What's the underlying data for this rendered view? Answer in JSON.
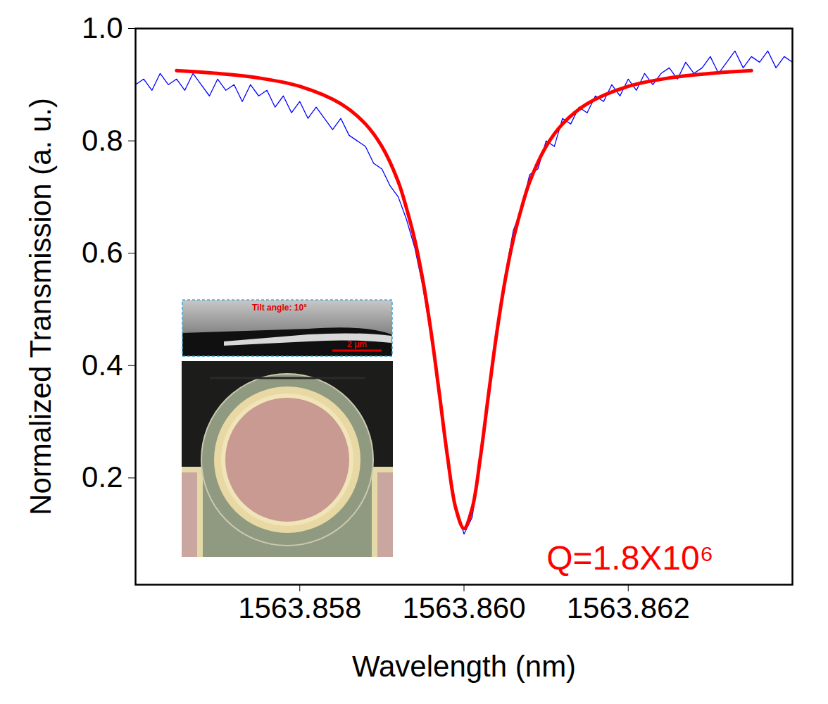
{
  "chart_data": {
    "type": "line",
    "x_label": "Wavelength (nm)",
    "y_label": "Normalized Transmission (a. u.)",
    "xlim": [
      1563.856,
      1563.864
    ],
    "xticks": [
      1563.858,
      {
        "value": 1563.86,
        "label": "1563.860"
      },
      1563.862
    ],
    "ylim": [
      0.01,
      1.0
    ],
    "yticks": [
      0.2,
      0.4,
      0.6,
      0.8,
      {
        "value": 1,
        "label": "1.0"
      }
    ],
    "grid": false,
    "series": [
      {
        "type": "line",
        "color": "#0000ff",
        "line_style": "solid",
        "x": [
          1563.856,
          1563.8561,
          1563.8562,
          1563.8563,
          1563.8564,
          1563.8565,
          1563.8566,
          1563.8567,
          1563.8568,
          1563.8569,
          1563.857,
          1563.8571,
          1563.8572,
          1563.8573,
          1563.8574,
          1563.8575,
          1563.8576,
          1563.8577,
          1563.8578,
          1563.8579,
          1563.858,
          1563.8581,
          1563.8582,
          1563.8583,
          1563.8584,
          1563.8585,
          1563.8586,
          1563.8587,
          1563.8588,
          1563.8589,
          1563.859,
          1563.8591,
          1563.8592,
          1563.8593,
          1563.8594,
          1563.8595,
          1563.8596,
          1563.8597,
          1563.8598,
          1563.8599,
          1563.86,
          1563.8601,
          1563.8602,
          1563.8603,
          1563.8604,
          1563.8605,
          1563.8606,
          1563.8607,
          1563.8608,
          1563.8609,
          1563.861,
          1563.8611,
          1563.8612,
          1563.8613,
          1563.8614,
          1563.8615,
          1563.8616,
          1563.8617,
          1563.8618,
          1563.8619,
          1563.862,
          1563.8621,
          1563.8622,
          1563.8623,
          1563.8624,
          1563.8625,
          1563.8626,
          1563.8627,
          1563.8628,
          1563.8629,
          1563.863,
          1563.8631,
          1563.8632,
          1563.8633,
          1563.8634,
          1563.8635,
          1563.8636,
          1563.8637,
          1563.8638,
          1563.8639,
          1563.864
        ],
        "values": [
          0.9,
          0.91,
          0.89,
          0.92,
          0.9,
          0.91,
          0.89,
          0.92,
          0.9,
          0.88,
          0.91,
          0.89,
          0.9,
          0.87,
          0.9,
          0.88,
          0.89,
          0.86,
          0.88,
          0.85,
          0.87,
          0.84,
          0.86,
          0.84,
          0.82,
          0.84,
          0.81,
          0.8,
          0.79,
          0.76,
          0.75,
          0.72,
          0.7,
          0.66,
          0.61,
          0.54,
          0.45,
          0.36,
          0.24,
          0.15,
          0.1,
          0.13,
          0.23,
          0.36,
          0.46,
          0.56,
          0.64,
          0.68,
          0.74,
          0.75,
          0.8,
          0.79,
          0.84,
          0.83,
          0.86,
          0.85,
          0.88,
          0.87,
          0.9,
          0.88,
          0.91,
          0.89,
          0.92,
          0.9,
          0.92,
          0.93,
          0.91,
          0.94,
          0.92,
          0.93,
          0.95,
          0.92,
          0.94,
          0.96,
          0.93,
          0.95,
          0.94,
          0.96,
          0.93,
          0.95,
          0.94
        ]
      },
      {
        "type": "line",
        "color": "#ff0000",
        "line_style": "solid",
        "x": [
          1563.8565,
          1563.857,
          1563.8575,
          1563.858,
          1563.8585,
          1563.8588,
          1563.859,
          1563.8592,
          1563.8593,
          1563.8594,
          1563.8595,
          1563.8596,
          1563.8597,
          1563.8598,
          1563.8599,
          1563.86,
          1563.8601,
          1563.8602,
          1563.8603,
          1563.8604,
          1563.8605,
          1563.8606,
          1563.8607,
          1563.8608,
          1563.861,
          1563.8612,
          1563.8615,
          1563.862,
          1563.8625,
          1563.863,
          1563.8635
        ],
        "values": [
          0.925,
          0.92,
          0.912,
          0.897,
          0.866,
          0.83,
          0.79,
          0.727,
          0.68,
          0.624,
          0.551,
          0.459,
          0.35,
          0.237,
          0.146,
          0.11,
          0.146,
          0.237,
          0.35,
          0.459,
          0.551,
          0.624,
          0.68,
          0.727,
          0.79,
          0.83,
          0.866,
          0.897,
          0.912,
          0.92,
          0.925
        ]
      }
    ],
    "annotations": [
      "Q=1.8X10⁶",
      "Tilt angle: 10°",
      "2 μm"
    ]
  }
}
